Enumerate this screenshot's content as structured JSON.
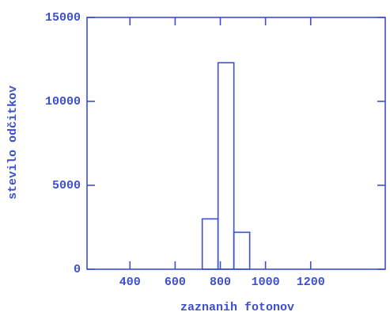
{
  "chart_data": {
    "type": "histogram",
    "xlabel": "zaznanih fotonov",
    "ylabel": "stevilo odčitkov",
    "bins": [
      720,
      790,
      860,
      930
    ],
    "values": [
      3000,
      12300,
      2200
    ],
    "color": "#3b4fd0",
    "xlim": [
      210,
      1530
    ],
    "xticks": [
      400,
      600,
      800,
      1000,
      1200
    ],
    "ylim": [
      0,
      15000
    ],
    "yticks": [
      0,
      5000,
      10000,
      15000
    ]
  }
}
